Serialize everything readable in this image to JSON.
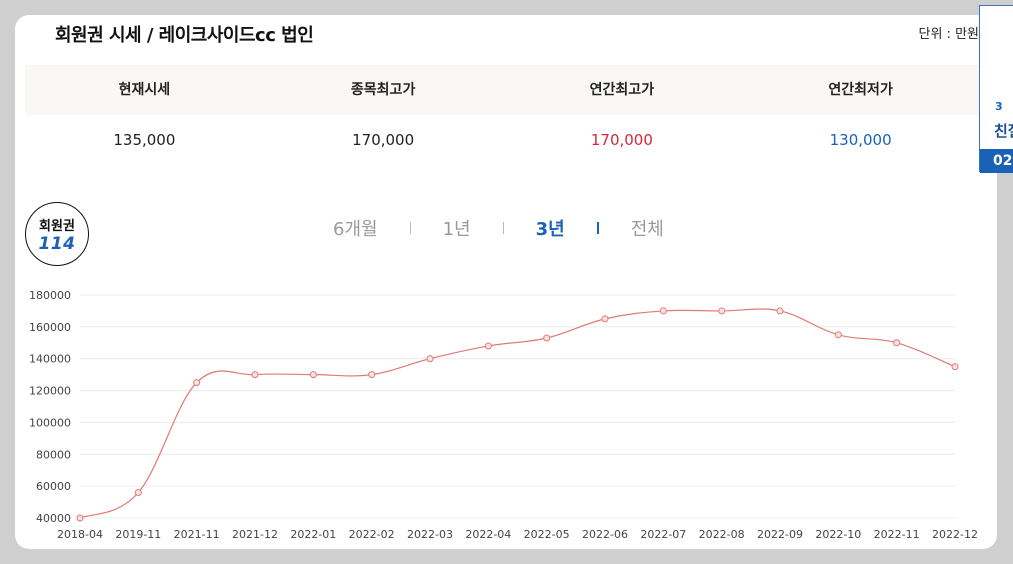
{
  "title": "회원권 시세 / 레이크사이드cc 법인",
  "unit_label": "단위 : 만원",
  "stats": {
    "headers": [
      "현재시세",
      "종목최고가",
      "연간최고가",
      "연간최저가"
    ],
    "values": [
      "135,000",
      "170,000",
      "170,000",
      "130,000"
    ],
    "colors": [
      "#222222",
      "#222222",
      "#d9253a",
      "#1a62b6"
    ]
  },
  "logo": {
    "line1": "회원권",
    "line2": "114"
  },
  "tabs": [
    {
      "label": "6개월",
      "active": false
    },
    {
      "label": "1년",
      "active": false
    },
    {
      "label": "3년",
      "active": true
    },
    {
      "label": "전체",
      "active": false
    }
  ],
  "side_banner": {
    "text1": "3",
    "text2": "친절",
    "text3": "02"
  },
  "chart_data": {
    "type": "line",
    "categories": [
      "2018-04",
      "2019-11",
      "2021-11",
      "2021-12",
      "2022-01",
      "2022-02",
      "2022-03",
      "2022-04",
      "2022-05",
      "2022-06",
      "2022-07",
      "2022-08",
      "2022-09",
      "2022-10",
      "2022-11",
      "2022-12"
    ],
    "series": [
      {
        "values": [
          40000,
          56000,
          125000,
          130000,
          130000,
          130000,
          140000,
          148000,
          153000,
          165000,
          170000,
          170000,
          170000,
          155000,
          150000,
          135000
        ]
      }
    ],
    "yticks": [
      "40000",
      "60000",
      "80000",
      "100000",
      "120000",
      "140000",
      "160000",
      "180000"
    ],
    "ylim": [
      40000,
      180000
    ],
    "line_color": "#e07a74",
    "grid": true
  }
}
